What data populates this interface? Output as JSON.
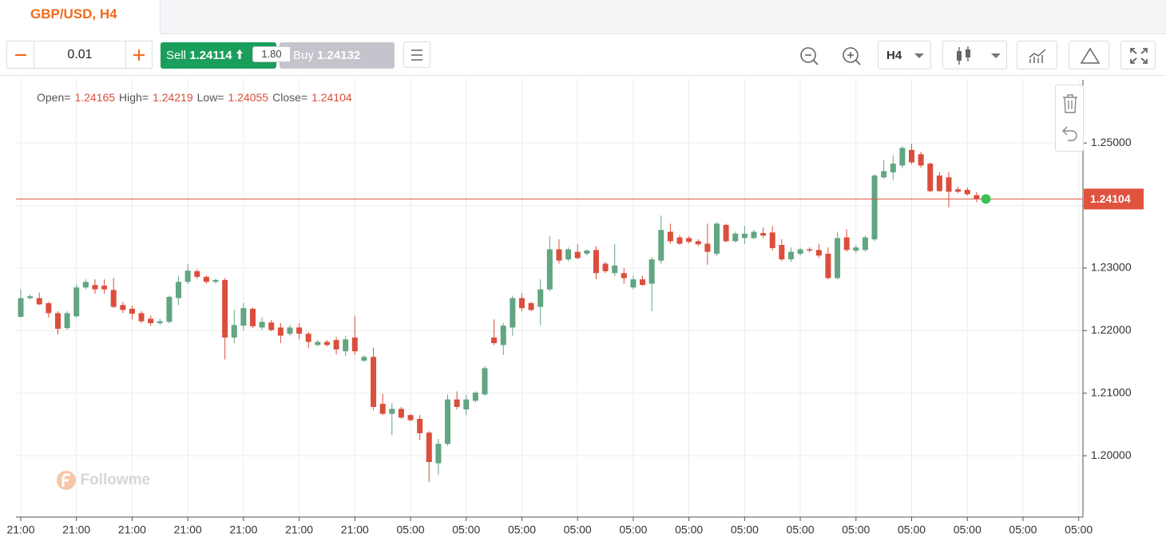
{
  "tab": {
    "title": "GBP/USD, H4"
  },
  "toolbar": {
    "lot": "0.01",
    "sell": {
      "label": "Sell",
      "price": "1.24114"
    },
    "spread": "1.80",
    "buy": {
      "label": "Buy",
      "price": "1.24132"
    },
    "timeframe": "H4"
  },
  "watermark": "Followme",
  "chart_data": {
    "type": "candlestick",
    "legend_labels": [
      "Open=",
      "High=",
      "Low=",
      "Close="
    ],
    "colors": {
      "up": "#62a582",
      "down": "#dc4e3c",
      "price_line": "#e0533f",
      "live": "#3bbf55"
    },
    "grid": true,
    "ylim": [
      1.1902,
      1.2601
    ],
    "yticks": [
      {
        "value": 1.2,
        "label": "1.20000"
      },
      {
        "value": 1.21,
        "label": "1.21000"
      },
      {
        "value": 1.22,
        "label": "1.22000"
      },
      {
        "value": 1.23,
        "label": "1.23000"
      },
      {
        "value": 1.24,
        "label": "1.24000"
      },
      {
        "value": 1.25,
        "label": "1.25000"
      }
    ],
    "xtick_labels": [
      "21:00",
      "21:00",
      "21:00",
      "21:00",
      "21:00",
      "21:00",
      "21:00",
      "05:00",
      "05:00",
      "05:00",
      "05:00",
      "05:00",
      "05:00",
      "05:00",
      "05:00",
      "05:00",
      "05:00",
      "05:00",
      "05:00",
      "05:00"
    ],
    "open": [
      1.2222,
      1.2252,
      1.2252,
      1.2244,
      1.2228,
      1.2204,
      1.2223,
      1.2269,
      1.2273,
      1.2272,
      1.2265,
      1.2241,
      1.2235,
      1.2228,
      1.2219,
      1.2212,
      1.2214,
      1.2252,
      1.2278,
      1.2295,
      1.2286,
      1.2278,
      1.2281,
      1.2189,
      1.2208,
      1.2235,
      1.2205,
      1.2213,
      1.2205,
      1.2195,
      1.2205,
      1.2195,
      1.2177,
      1.2182,
      1.2185,
      1.2167,
      1.2189,
      1.2152,
      1.2158,
      1.2083,
      1.2067,
      1.2075,
      1.2065,
      1.2059,
      1.2037,
      1.1988,
      1.2019,
      1.209,
      1.2074,
      1.2088,
      1.2098,
      1.2189,
      1.2177,
      1.2205,
      1.2252,
      1.2244,
      1.2238,
      1.2266,
      1.233,
      1.2314,
      1.2326,
      1.2323,
      1.2329,
      1.2307,
      1.2292,
      1.2292,
      1.2269,
      1.2282,
      1.2275,
      1.2312,
      1.2358,
      1.2349,
      1.2348,
      1.2343,
      1.2339,
      1.2323,
      1.2369,
      1.2343,
      1.2348,
      1.2348,
      1.2356,
      1.2357,
      1.2337,
      1.2314,
      1.2323,
      1.233,
      1.2329,
      1.2323,
      1.2284,
      1.2349,
      1.2328,
      1.2329,
      1.2346,
      1.2445,
      1.2453,
      1.2464,
      1.2489,
      1.2482,
      1.2467,
      1.2448,
      1.2445,
      1.2426,
      1.2425,
      1.24165
    ],
    "high": [
      1.2266,
      1.2258,
      1.2261,
      1.2246,
      1.2231,
      1.2231,
      1.2274,
      1.2282,
      1.2282,
      1.2282,
      1.2284,
      1.2246,
      1.224,
      1.2231,
      1.2224,
      1.2219,
      1.2256,
      1.2288,
      1.2307,
      1.2298,
      1.2288,
      1.2283,
      1.2284,
      1.2233,
      1.2244,
      1.2237,
      1.2221,
      1.2217,
      1.2212,
      1.2209,
      1.2212,
      1.2198,
      1.2185,
      1.2185,
      1.219,
      1.2192,
      1.2224,
      1.2161,
      1.2173,
      1.2099,
      1.2084,
      1.2078,
      1.2067,
      1.2065,
      1.2039,
      1.2027,
      1.2098,
      1.2103,
      1.2097,
      1.2103,
      1.2143,
      1.2218,
      1.2212,
      1.2256,
      1.226,
      1.2246,
      1.2282,
      1.2351,
      1.2346,
      1.2333,
      1.2338,
      1.233,
      1.2335,
      1.231,
      1.2339,
      1.23,
      1.2288,
      1.2288,
      1.2318,
      1.2384,
      1.2371,
      1.2353,
      1.2351,
      1.2346,
      1.2371,
      1.2374,
      1.2371,
      1.2358,
      1.2367,
      1.2361,
      1.2365,
      1.2367,
      1.2346,
      1.2333,
      1.2333,
      1.2333,
      1.2339,
      1.2333,
      1.2358,
      1.2362,
      1.2337,
      1.2352,
      1.245,
      1.2473,
      1.248,
      1.2495,
      1.2499,
      1.2486,
      1.2469,
      1.2454,
      1.2454,
      1.243,
      1.2429,
      1.24219
    ],
    "low": [
      1.2221,
      1.225,
      1.2241,
      1.2221,
      1.2194,
      1.2201,
      1.2221,
      1.2266,
      1.2259,
      1.2259,
      1.2236,
      1.2228,
      1.2218,
      1.2212,
      1.2208,
      1.2209,
      1.2212,
      1.2241,
      1.2274,
      1.2283,
      1.2275,
      1.2275,
      1.2154,
      1.218,
      1.2201,
      1.2204,
      1.2201,
      1.2199,
      1.218,
      1.2192,
      1.2186,
      1.2172,
      1.2175,
      1.2175,
      1.2162,
      1.2159,
      1.2161,
      1.215,
      1.2073,
      1.2065,
      1.2033,
      1.2059,
      1.2055,
      1.2025,
      1.1958,
      1.197,
      1.2016,
      1.2074,
      1.2065,
      1.2085,
      1.2096,
      1.2177,
      1.2161,
      1.2192,
      1.2231,
      1.2231,
      1.2208,
      1.2263,
      1.2307,
      1.2311,
      1.2314,
      1.232,
      1.2282,
      1.2292,
      1.2287,
      1.2275,
      1.2266,
      1.2272,
      1.2231,
      1.2307,
      1.2339,
      1.2337,
      1.2339,
      1.2335,
      1.2305,
      1.232,
      1.2341,
      1.2341,
      1.2339,
      1.2346,
      1.2348,
      1.2328,
      1.2311,
      1.231,
      1.232,
      1.2325,
      1.2316,
      1.2282,
      1.2282,
      1.2326,
      1.2324,
      1.2326,
      1.2343,
      1.2443,
      1.2441,
      1.246,
      1.2466,
      1.246,
      1.2421,
      1.2422,
      1.2397,
      1.242,
      1.2416,
      1.24055
    ],
    "close": [
      1.2252,
      1.2255,
      1.2242,
      1.2228,
      1.2203,
      1.2228,
      1.2269,
      1.2278,
      1.2266,
      1.2266,
      1.2238,
      1.2233,
      1.2227,
      1.2215,
      1.2212,
      1.2215,
      1.2254,
      1.2278,
      1.2296,
      1.2286,
      1.2278,
      1.2281,
      1.2189,
      1.2209,
      1.2236,
      1.2207,
      1.2214,
      1.2201,
      1.2192,
      1.2205,
      1.2195,
      1.2182,
      1.2182,
      1.2177,
      1.217,
      1.2186,
      1.2167,
      1.2158,
      1.2078,
      1.2067,
      1.2075,
      1.2061,
      1.2057,
      1.2036,
      1.199,
      1.2019,
      1.209,
      1.2078,
      1.209,
      1.2101,
      1.214,
      1.218,
      1.2208,
      1.2252,
      1.2236,
      1.2233,
      1.2266,
      1.233,
      1.2312,
      1.233,
      1.2316,
      1.2328,
      1.2292,
      1.2295,
      1.2304,
      1.2284,
      1.2282,
      1.2273,
      1.2314,
      1.2361,
      1.2343,
      1.2339,
      1.2342,
      1.2338,
      1.2326,
      1.2371,
      1.2343,
      1.2355,
      1.2355,
      1.2358,
      1.2352,
      1.2332,
      1.2314,
      1.2326,
      1.233,
      1.2328,
      1.232,
      1.2284,
      1.2348,
      1.2329,
      1.2333,
      1.2349,
      1.2448,
      1.2455,
      1.2467,
      1.2492,
      1.2469,
      1.2464,
      1.2423,
      1.2423,
      1.2422,
      1.2422,
      1.2418,
      1.24104
    ]
  }
}
